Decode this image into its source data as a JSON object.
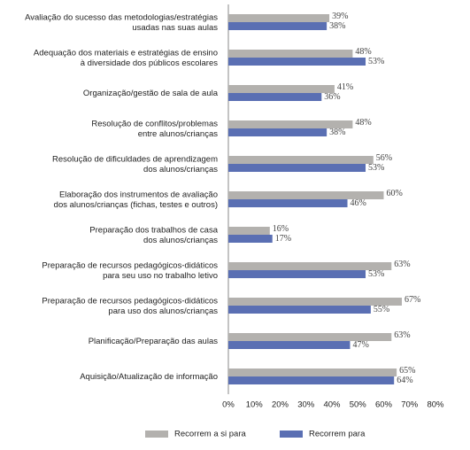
{
  "chart_data": {
    "type": "hbar",
    "categories": [
      [
        "Avaliação do sucesso das metodologias/estratégias",
        "usadas nas suas aulas"
      ],
      [
        "Adequação dos materiais e estratégias de ensino",
        "à diversidade dos públicos escolares"
      ],
      [
        "Organização/gestão de sala de aula"
      ],
      [
        "Resolução de conflitos/problemas",
        "entre alunos/crianças"
      ],
      [
        "Resolução de dificuldades de aprendizagem",
        "dos alunos/crianças"
      ],
      [
        "Elaboração dos instrumentos de avaliação",
        "dos alunos/crianças (fichas, testes e outros)"
      ],
      [
        "Preparação dos trabalhos de casa",
        "dos alunos/crianças"
      ],
      [
        "Preparação de recursos pedagógicos-didáticos",
        "para seu uso no trabalho letivo"
      ],
      [
        "Preparação de recursos pedagógicos-didáticos",
        "para uso dos alunos/crianças"
      ],
      [
        "Planificação/Preparação das aulas"
      ],
      [
        "Aquisição/Atualização de informação"
      ]
    ],
    "series": [
      {
        "name": "Recorrem a si para",
        "color": "#b3b1ae",
        "values": [
          39,
          48,
          41,
          48,
          56,
          60,
          16,
          63,
          67,
          63,
          65
        ],
        "value_labels": [
          "39%",
          "48%",
          "41%",
          "48%",
          "56%",
          "60%",
          "16%",
          "63%",
          "67%",
          "63%",
          "65%"
        ]
      },
      {
        "name": "Recorrem para",
        "color": "#5a6fb3",
        "values": [
          38,
          53,
          36,
          38,
          53,
          46,
          17,
          53,
          55,
          47,
          64
        ],
        "value_labels": [
          "38%",
          "53%",
          "36%",
          "38%",
          "53%",
          "46%",
          "17%",
          "53%",
          "55%",
          "47%",
          "64%"
        ]
      }
    ],
    "xlim": [
      0,
      80
    ],
    "xticks": [
      {
        "value": 0,
        "label": "0%"
      },
      {
        "value": 10,
        "label": "10%"
      },
      {
        "value": 20,
        "label": "20%"
      },
      {
        "value": 30,
        "label": "30%"
      },
      {
        "value": 40,
        "label": "40%"
      },
      {
        "value": 50,
        "label": "50%"
      },
      {
        "value": 60,
        "label": "60%"
      },
      {
        "value": 70,
        "label": "70%"
      },
      {
        "value": 80,
        "label": "80%"
      }
    ],
    "legend": "bottom"
  }
}
